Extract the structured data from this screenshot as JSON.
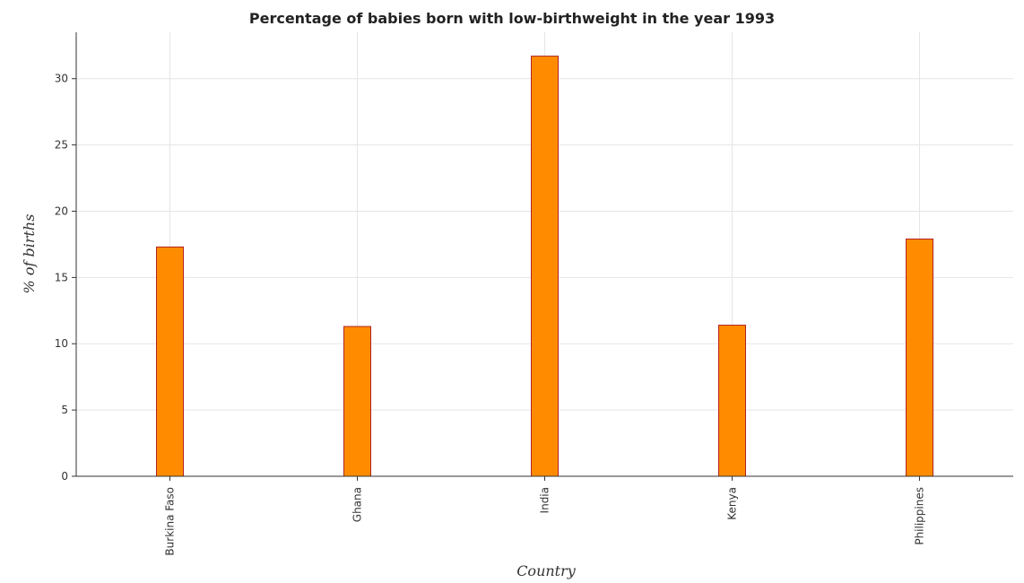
{
  "chart_data": {
    "type": "bar",
    "title": "Percentage of babies born with low-birthweight in the year 1993",
    "xlabel": "Country",
    "ylabel": "% of births",
    "categories": [
      "Burkina Faso",
      "Ghana",
      "India",
      "Kenya",
      "Philippines"
    ],
    "values": [
      17.3,
      11.3,
      31.7,
      11.4,
      17.9
    ],
    "ylim": [
      0,
      33.5
    ],
    "yticks": [
      0,
      5,
      10,
      15,
      20,
      25,
      30
    ],
    "grid": true,
    "colors": {
      "bar_fill": "#ff8c00",
      "bar_stroke": "#b22222",
      "grid": "#e5e5e5",
      "axis": "#333333"
    }
  }
}
